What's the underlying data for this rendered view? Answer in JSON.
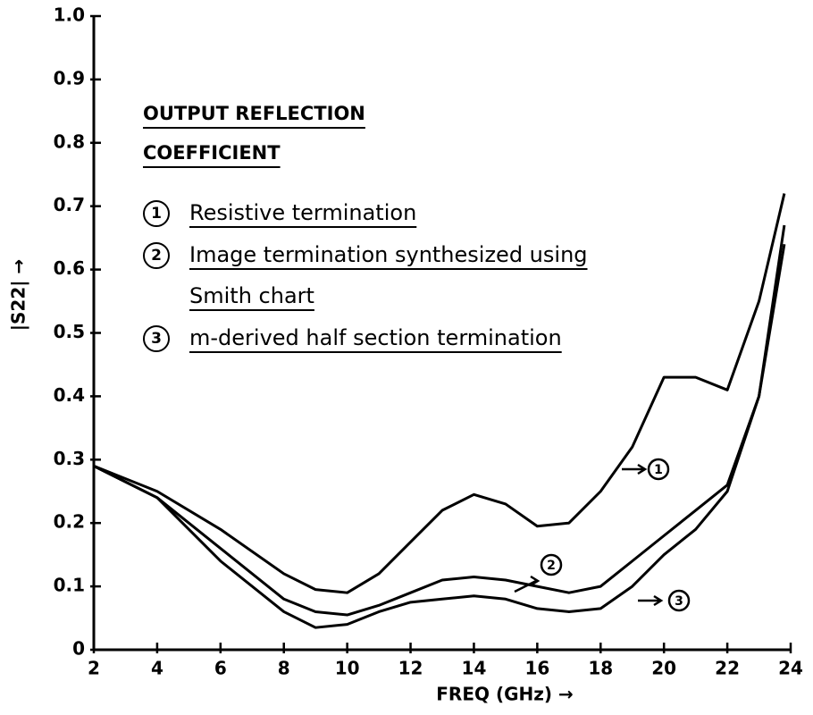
{
  "chart_data": {
    "type": "line",
    "title": "OUTPUT REFLECTION COEFFICIENT",
    "xlabel": "FREQ (GHz) →",
    "ylabel": "|S22| →",
    "x": [
      2,
      4,
      6,
      8,
      9,
      10,
      11,
      12,
      13,
      14,
      15,
      16,
      17,
      18,
      19,
      20,
      21,
      22,
      23,
      23.8
    ],
    "series": [
      {
        "number": "1",
        "name": "Resistive termination",
        "color": "#000000",
        "values": [
          0.29,
          0.25,
          0.19,
          0.12,
          0.095,
          0.09,
          0.12,
          0.17,
          0.22,
          0.245,
          0.23,
          0.195,
          0.2,
          0.25,
          0.32,
          0.43,
          0.43,
          0.41,
          0.55,
          0.72
        ]
      },
      {
        "number": "2",
        "name": "Image termination synthesized using Smith chart",
        "color": "#000000",
        "values": [
          0.29,
          0.24,
          0.16,
          0.08,
          0.06,
          0.055,
          0.07,
          0.09,
          0.11,
          0.115,
          0.11,
          0.1,
          0.09,
          0.1,
          0.14,
          0.18,
          0.22,
          0.26,
          0.4,
          0.67
        ]
      },
      {
        "number": "3",
        "name": "m-derived half section termination",
        "color": "#000000",
        "values": [
          0.29,
          0.24,
          0.14,
          0.06,
          0.035,
          0.04,
          0.06,
          0.075,
          0.08,
          0.085,
          0.08,
          0.065,
          0.06,
          0.065,
          0.1,
          0.15,
          0.19,
          0.25,
          0.4,
          0.64
        ]
      }
    ],
    "xlim": [
      2,
      24
    ],
    "xticks": [
      2,
      4,
      6,
      8,
      10,
      12,
      14,
      16,
      18,
      20,
      22,
      24
    ],
    "ylim": [
      0,
      1
    ],
    "yticks": [
      0,
      0.1,
      0.2,
      0.3,
      0.4,
      0.5,
      0.6,
      0.7,
      0.8,
      0.9,
      {
        "value": 1,
        "label": "1.0"
      }
    ],
    "grid": false
  }
}
